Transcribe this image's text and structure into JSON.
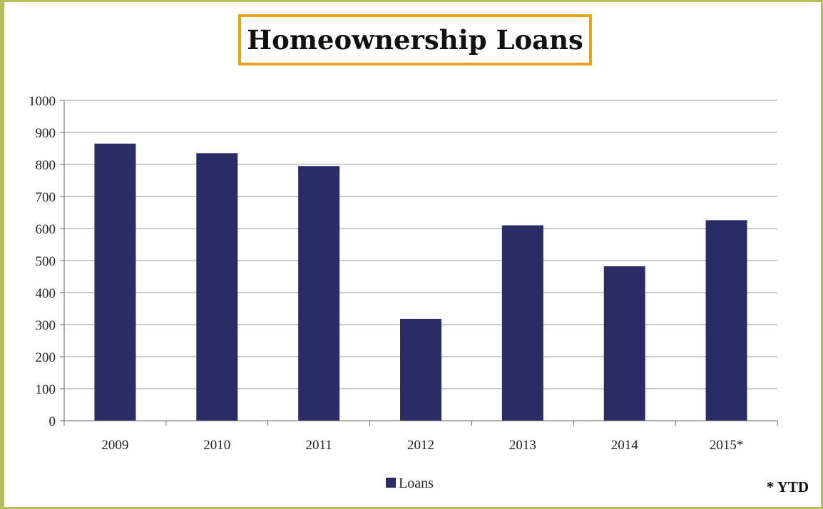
{
  "chart_data": {
    "type": "bar",
    "title": "Homeownership Loans",
    "categories": [
      "2009",
      "2010",
      "2011",
      "2012",
      "2013",
      "2014",
      "2015*"
    ],
    "series": [
      {
        "name": "Loans",
        "values": [
          865,
          835,
          795,
          318,
          610,
          482,
          626
        ],
        "color": "#2a2c66"
      }
    ],
    "ylim": [
      0,
      1000
    ],
    "yticks": [
      0,
      100,
      200,
      300,
      400,
      500,
      600,
      700,
      800,
      900,
      1000
    ],
    "grid": true,
    "legend_position": "bottom",
    "footnote": "* YTD"
  },
  "colors": {
    "frame": "#b5be5c",
    "title_border": "#e8a31c",
    "bar": "#2a2c66",
    "grid": "#9a9a9a"
  }
}
